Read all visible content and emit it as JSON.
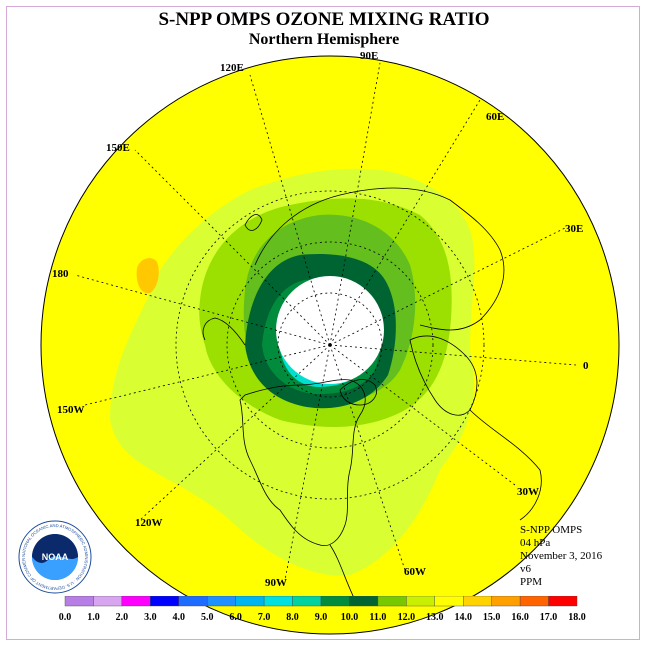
{
  "title": "S-NPP OMPS OZONE MIXING RATIO",
  "subtitle": "Northern Hemisphere",
  "longitude_labels": [
    "90E",
    "60E",
    "30E",
    "0",
    "30W",
    "60W",
    "90W",
    "120W",
    "150W",
    "180",
    "150E",
    "120E"
  ],
  "info": {
    "instrument": "S-NPP OMPS",
    "level": "04 hPa",
    "date": "November 3, 2016",
    "version": "v6",
    "units": "PPM"
  },
  "colorbar": {
    "ticks": [
      "0.0",
      "1.0",
      "2.0",
      "3.0",
      "4.0",
      "5.0",
      "6.0",
      "7.0",
      "8.0",
      "9.0",
      "10.0",
      "11.0",
      "12.0",
      "13.0",
      "14.0",
      "15.0",
      "16.0",
      "17.0",
      "18.0"
    ],
    "colors": [
      "#b77ee6",
      "#d8a6f0",
      "#ff00ff",
      "#0000ff",
      "#1e6cff",
      "#1e90ff",
      "#00b4f0",
      "#00e0e0",
      "#00d2a0",
      "#008c3c",
      "#006432",
      "#78c800",
      "#c8f000",
      "#ffff00",
      "#ffd200",
      "#ffa000",
      "#ff6400",
      "#ff0000",
      "#a0522d"
    ]
  },
  "logo": {
    "text": "NOAA",
    "ring_text": "NATIONAL OCEANIC AND ATMOSPHERIC ADMINISTRATION · U.S. DEPARTMENT OF COMMERCE"
  }
}
